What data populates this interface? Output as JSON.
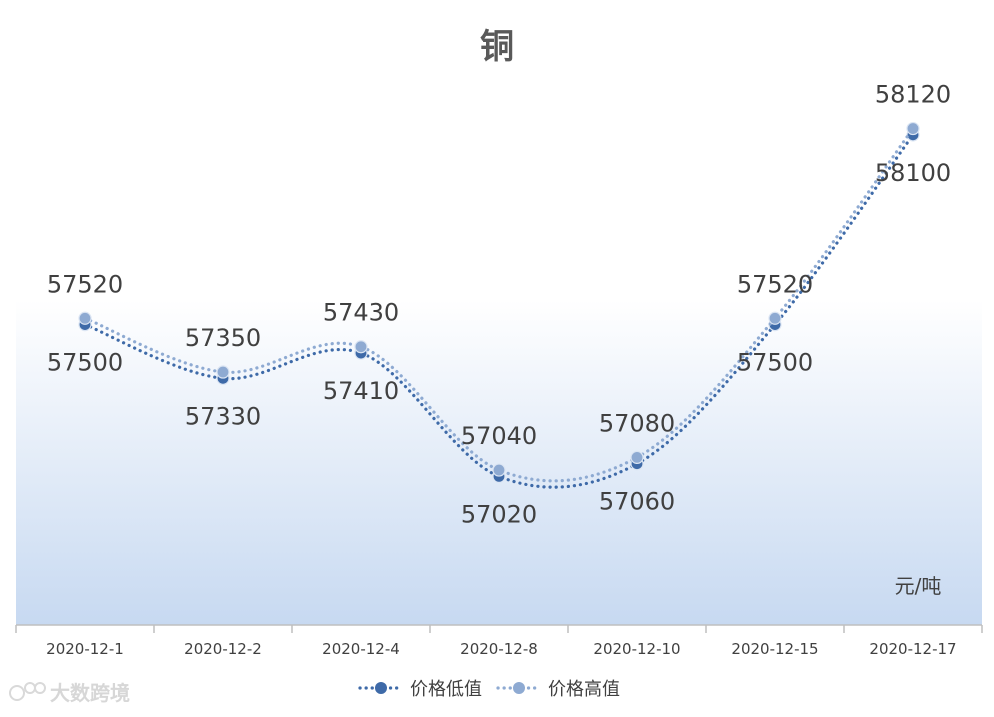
{
  "chart_data": {
    "type": "line",
    "title": "铜",
    "unit_label": "元/吨",
    "categories": [
      "2020-12-1",
      "2020-12-2",
      "2020-12-4",
      "2020-12-8",
      "2020-12-10",
      "2020-12-15",
      "2020-12-17"
    ],
    "series": [
      {
        "name": "价格低值",
        "values": [
          57500,
          57330,
          57410,
          57020,
          57060,
          57500,
          58100
        ],
        "color": "#3e6aa8"
      },
      {
        "name": "价格高值",
        "values": [
          57520,
          57350,
          57430,
          57040,
          57080,
          57520,
          58120
        ],
        "color": "#8eaad2"
      }
    ],
    "ylim": [
      56550,
      58400
    ],
    "grid": false,
    "smooth": true,
    "legend_position": "bottom",
    "background_gradient": [
      "#ffffff",
      "#c7d9f1"
    ]
  },
  "watermark": "大数跨境"
}
